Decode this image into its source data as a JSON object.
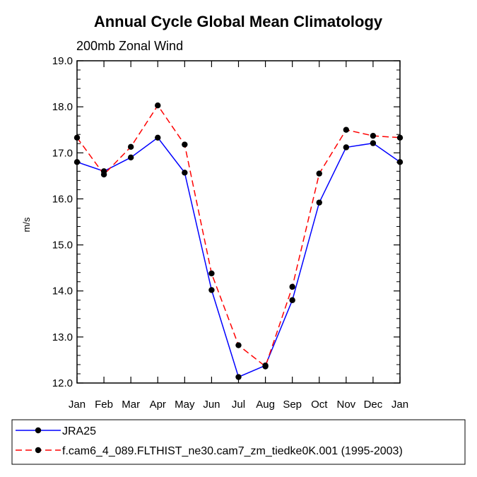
{
  "chart_data": {
    "type": "line",
    "title": "Annual Cycle Global Mean Climatology",
    "subtitle": "200mb Zonal Wind",
    "xlabel": "",
    "ylabel": "m/s",
    "categories": [
      "Jan",
      "Feb",
      "Mar",
      "Apr",
      "May",
      "Jun",
      "Jul",
      "Aug",
      "Sep",
      "Oct",
      "Nov",
      "Dec",
      "Jan"
    ],
    "ylim": [
      12.0,
      19.0
    ],
    "yticks": [
      "12.0",
      "13.0",
      "14.0",
      "15.0",
      "16.0",
      "17.0",
      "18.0",
      "19.0"
    ],
    "grid": false,
    "legend_position": "bottom",
    "series": [
      {
        "name": "JRA25",
        "color": "#0000ff",
        "dash": "solid",
        "marker": "filled-circle",
        "values": [
          16.8,
          16.6,
          16.9,
          17.33,
          16.57,
          14.02,
          12.13,
          12.38,
          13.8,
          15.92,
          17.12,
          17.21,
          16.8
        ]
      },
      {
        "name": "f.cam6_4_089.FLTHIST_ne30.cam7_zm_tiedke0K.001 (1995-2003)",
        "color": "#ff0000",
        "dash": "dashed",
        "marker": "filled-circle",
        "values": [
          17.33,
          16.53,
          17.13,
          18.03,
          17.18,
          14.38,
          12.82,
          12.36,
          14.09,
          16.55,
          17.5,
          17.37,
          17.33
        ]
      }
    ]
  }
}
